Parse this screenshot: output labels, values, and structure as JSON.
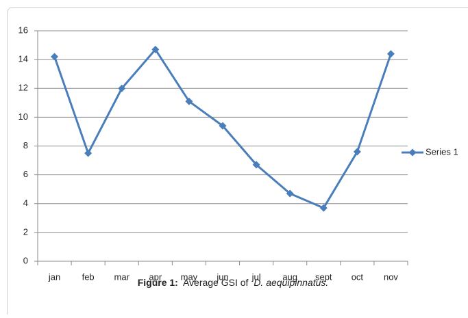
{
  "chart_data": {
    "type": "line",
    "categories": [
      "jan",
      "feb",
      "mar",
      "apr",
      "may",
      "jun",
      "jul",
      "aug",
      "sept",
      "oct",
      "nov"
    ],
    "series": [
      {
        "name": "Series 1",
        "color": "#4a7ebb",
        "values": [
          14.2,
          7.5,
          12.0,
          14.7,
          11.1,
          9.4,
          6.7,
          4.7,
          3.7,
          7.6,
          14.4
        ]
      }
    ],
    "ylim": [
      0,
      16
    ],
    "yticks": [
      0,
      2,
      4,
      6,
      8,
      10,
      12,
      14,
      16
    ],
    "grid": true,
    "legend": "right",
    "caption": {
      "label": "Figure 1:",
      "text": "Average GSI of",
      "species": "D. aequipinnatus."
    }
  }
}
